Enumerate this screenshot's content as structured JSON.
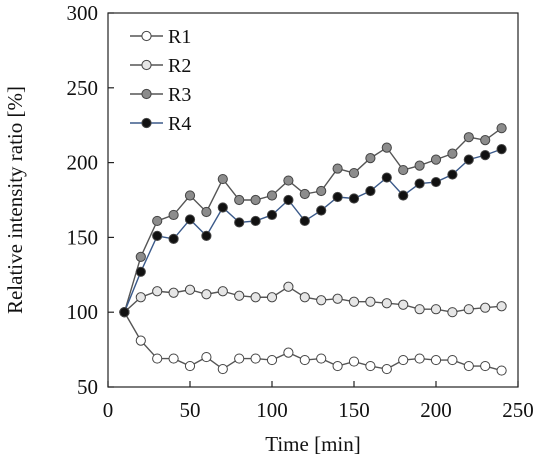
{
  "chart_data": {
    "type": "line",
    "title": "",
    "xlabel": "Time [min]",
    "ylabel": "Relative intensity ratio [%]",
    "xlim": [
      0,
      250
    ],
    "ylim": [
      50,
      300
    ],
    "xticks": [
      0,
      50,
      100,
      150,
      200,
      250
    ],
    "yticks": [
      50,
      100,
      150,
      200,
      250,
      300
    ],
    "grid": false,
    "legend_position": "top-left",
    "x": [
      10,
      20,
      30,
      40,
      50,
      60,
      70,
      80,
      90,
      100,
      110,
      120,
      130,
      140,
      150,
      160,
      170,
      180,
      190,
      200,
      210,
      220,
      230,
      240
    ],
    "series": [
      {
        "name": "R1",
        "marker_fill": "#ffffff",
        "line_color": "#555555",
        "values": [
          100,
          81,
          69,
          69,
          64,
          70,
          62,
          69,
          69,
          68,
          73,
          68,
          69,
          64,
          67,
          64,
          62,
          68,
          69,
          68,
          68,
          64,
          64,
          61
        ]
      },
      {
        "name": "R2",
        "marker_fill": "#e6e6e6",
        "line_color": "#555555",
        "values": [
          100,
          110,
          114,
          113,
          115,
          112,
          114,
          111,
          110,
          110,
          117,
          110,
          108,
          109,
          107,
          107,
          106,
          105,
          102,
          102,
          100,
          102,
          103,
          104
        ]
      },
      {
        "name": "R3",
        "marker_fill": "#8c8c8c",
        "line_color": "#555555",
        "values": [
          100,
          137,
          161,
          165,
          178,
          167,
          189,
          175,
          175,
          178,
          188,
          179,
          181,
          196,
          193,
          203,
          210,
          195,
          198,
          202,
          206,
          217,
          215,
          223
        ]
      },
      {
        "name": "R4",
        "marker_fill": "#111111",
        "line_color": "#3b5a8a",
        "values": [
          100,
          127,
          151,
          149,
          162,
          151,
          170,
          160,
          161,
          165,
          175,
          161,
          168,
          177,
          176,
          181,
          190,
          178,
          186,
          187,
          192,
          202,
          205,
          209
        ]
      }
    ]
  }
}
